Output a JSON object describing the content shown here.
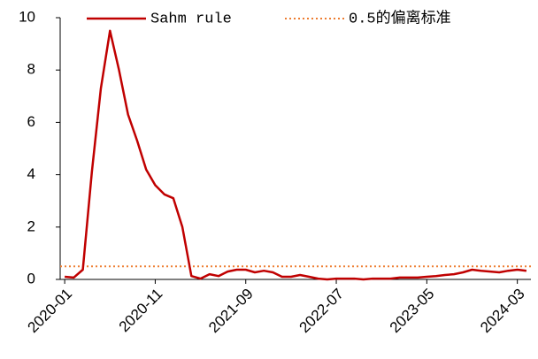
{
  "chart_data": {
    "type": "line",
    "categories": [
      "2020-01",
      null,
      null,
      null,
      null,
      null,
      null,
      null,
      null,
      null,
      "2020-11",
      null,
      null,
      null,
      null,
      null,
      null,
      null,
      null,
      null,
      "2021-09",
      null,
      null,
      null,
      null,
      null,
      null,
      null,
      null,
      null,
      "2022-07",
      null,
      null,
      null,
      null,
      null,
      null,
      null,
      null,
      null,
      "2023-05",
      null,
      null,
      null,
      null,
      null,
      null,
      null,
      null,
      null,
      "2024-03",
      null
    ],
    "series": [
      {
        "name": "Sahm rule",
        "color": "#c00000",
        "values": [
          0.1,
          0.07,
          0.37,
          4.1,
          7.3,
          9.5,
          8.0,
          6.3,
          5.3,
          4.2,
          3.6,
          3.25,
          3.1,
          2.0,
          0.13,
          0.03,
          0.2,
          0.13,
          0.3,
          0.37,
          0.37,
          0.27,
          0.33,
          0.27,
          0.1,
          0.1,
          0.17,
          0.1,
          0.03,
          0.0,
          0.03,
          0.03,
          0.03,
          0.0,
          0.03,
          0.03,
          0.03,
          0.07,
          0.07,
          0.07,
          0.1,
          0.13,
          0.17,
          0.2,
          0.27,
          0.37,
          0.33,
          0.3,
          0.27,
          0.33,
          0.37,
          0.33
        ]
      }
    ],
    "reference_line": {
      "name": "0.5的偏离标准",
      "value": 0.5,
      "color": "#ed7d31"
    },
    "ylim": [
      0,
      10
    ],
    "yticks": [
      0,
      2,
      4,
      6,
      8,
      10
    ],
    "grid": false
  }
}
